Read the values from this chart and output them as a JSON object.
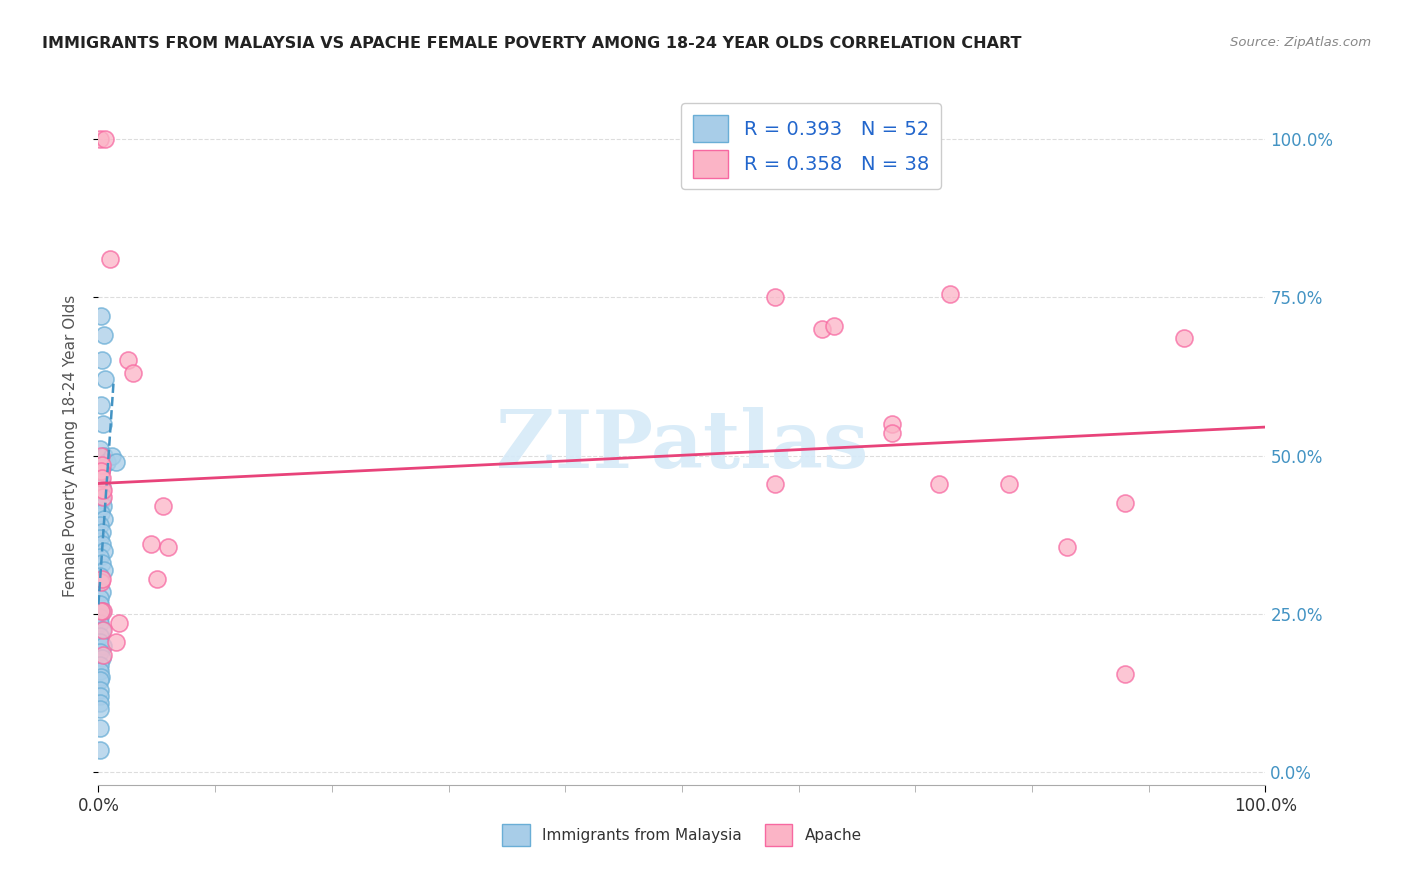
{
  "title": "IMMIGRANTS FROM MALAYSIA VS APACHE FEMALE POVERTY AMONG 18-24 YEAR OLDS CORRELATION CHART",
  "source": "Source: ZipAtlas.com",
  "ylabel": "Female Poverty Among 18-24 Year Olds",
  "legend1_label": "R = 0.393   N = 52",
  "legend2_label": "R = 0.358   N = 38",
  "legend_bottom1": "Immigrants from Malaysia",
  "legend_bottom2": "Apache",
  "blue_color": "#a8cde8",
  "blue_edge_color": "#6aaed6",
  "pink_color": "#fbb4c6",
  "pink_edge_color": "#f768a1",
  "blue_line_color": "#4393c3",
  "pink_line_color": "#e8437a",
  "watermark_color": "#d6eaf8",
  "blue_scatter_x": [
    0.002,
    0.005,
    0.003,
    0.006,
    0.002,
    0.004,
    0.001,
    0.005,
    0.007,
    0.003,
    0.001,
    0.002,
    0.003,
    0.001,
    0.003,
    0.004,
    0.002,
    0.005,
    0.001,
    0.003,
    0.001,
    0.003,
    0.005,
    0.001,
    0.003,
    0.005,
    0.001,
    0.001,
    0.003,
    0.001,
    0.001,
    0.003,
    0.001,
    0.001,
    0.003,
    0.001,
    0.001,
    0.004,
    0.001,
    0.003,
    0.001,
    0.001,
    0.002,
    0.012,
    0.001,
    0.001,
    0.001,
    0.001,
    0.015,
    0.001,
    0.001,
    0.001
  ],
  "blue_scatter_y": [
    0.72,
    0.69,
    0.65,
    0.62,
    0.58,
    0.55,
    0.51,
    0.5,
    0.49,
    0.48,
    0.47,
    0.46,
    0.45,
    0.44,
    0.43,
    0.42,
    0.41,
    0.4,
    0.39,
    0.38,
    0.37,
    0.36,
    0.35,
    0.34,
    0.33,
    0.32,
    0.31,
    0.3,
    0.285,
    0.275,
    0.265,
    0.255,
    0.245,
    0.235,
    0.225,
    0.215,
    0.205,
    0.2,
    0.19,
    0.18,
    0.17,
    0.16,
    0.15,
    0.5,
    0.145,
    0.13,
    0.12,
    0.11,
    0.49,
    0.1,
    0.07,
    0.035
  ],
  "pink_scatter_x": [
    0.001,
    0.006,
    0.01,
    0.025,
    0.03,
    0.055,
    0.045,
    0.002,
    0.003,
    0.004,
    0.002,
    0.004,
    0.06,
    0.05,
    0.002,
    0.003,
    0.58,
    0.62,
    0.68,
    0.72,
    0.78,
    0.83,
    0.88,
    0.015,
    0.018,
    0.68,
    0.73,
    0.63,
    0.002,
    0.003,
    0.004,
    0.58,
    0.88,
    0.93,
    0.004,
    0.004,
    0.003,
    0.002
  ],
  "pink_scatter_y": [
    1.0,
    1.0,
    0.81,
    0.65,
    0.63,
    0.42,
    0.36,
    0.475,
    0.445,
    0.435,
    0.3,
    0.255,
    0.355,
    0.305,
    0.5,
    0.485,
    0.75,
    0.7,
    0.55,
    0.455,
    0.455,
    0.355,
    0.425,
    0.205,
    0.235,
    0.535,
    0.755,
    0.705,
    0.475,
    0.465,
    0.445,
    0.455,
    0.155,
    0.685,
    0.225,
    0.185,
    0.305,
    0.255
  ],
  "xlim": [
    0.0,
    1.0
  ],
  "ylim": [
    -0.02,
    1.05
  ],
  "ytick_positions": [
    0.0,
    0.25,
    0.5,
    0.75,
    1.0
  ],
  "ytick_labels_right": [
    "0.0%",
    "25.0%",
    "50.0%",
    "75.0%",
    "100.0%"
  ],
  "xtick_positions": [
    0.0,
    0.1,
    0.2,
    0.3,
    0.4,
    0.5,
    0.6,
    0.7,
    0.8,
    0.9,
    1.0
  ],
  "xtick_major": [
    0.0,
    1.0
  ],
  "xtick_major_labels": [
    "0.0%",
    "100.0%"
  ]
}
